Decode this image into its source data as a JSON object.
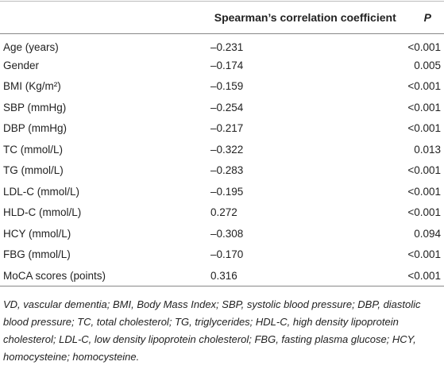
{
  "table": {
    "header": [
      "Spearman’s correlation coefficient",
      "P"
    ],
    "rows": [
      [
        "Age (years)",
        "–0.231",
        "<0.001"
      ],
      [
        "Gender",
        "–0.174",
        "0.005"
      ],
      [
        "BMI (Kg/m²)",
        "–0.159",
        "<0.001"
      ],
      [
        "SBP (mmHg)",
        "–0.254",
        "<0.001"
      ],
      [
        "DBP (mmHg)",
        "–0.217",
        "<0.001"
      ],
      [
        "TC (mmol/L)",
        "–0.322",
        "0.013"
      ],
      [
        "TG (mmol/L)",
        "–0.283",
        "<0.001"
      ],
      [
        "LDL-C (mmol/L)",
        "–0.195",
        "<0.001"
      ],
      [
        "HLD-C (mmol/L)",
        "0.272",
        "<0.001"
      ],
      [
        "HCY (mmol/L)",
        "–0.308",
        "0.094"
      ],
      [
        "FBG (mmol/L)",
        "–0.170",
        "<0.001"
      ],
      [
        "MoCA scores (points)",
        "0.316",
        "<0.001"
      ]
    ],
    "footnote": "VD, vascular dementia; BMI, Body Mass Index; SBP, systolic blood pressure; DBP, diastolic blood pressure; TC, total cholesterol; TG, triglycerides; HDL-C, high density lipoprotein cholesterol; LDL-C, low density lipoprotein cholesterol; FBG, fasting plasma glucose; HCY, homocysteine; homocysteine."
  }
}
